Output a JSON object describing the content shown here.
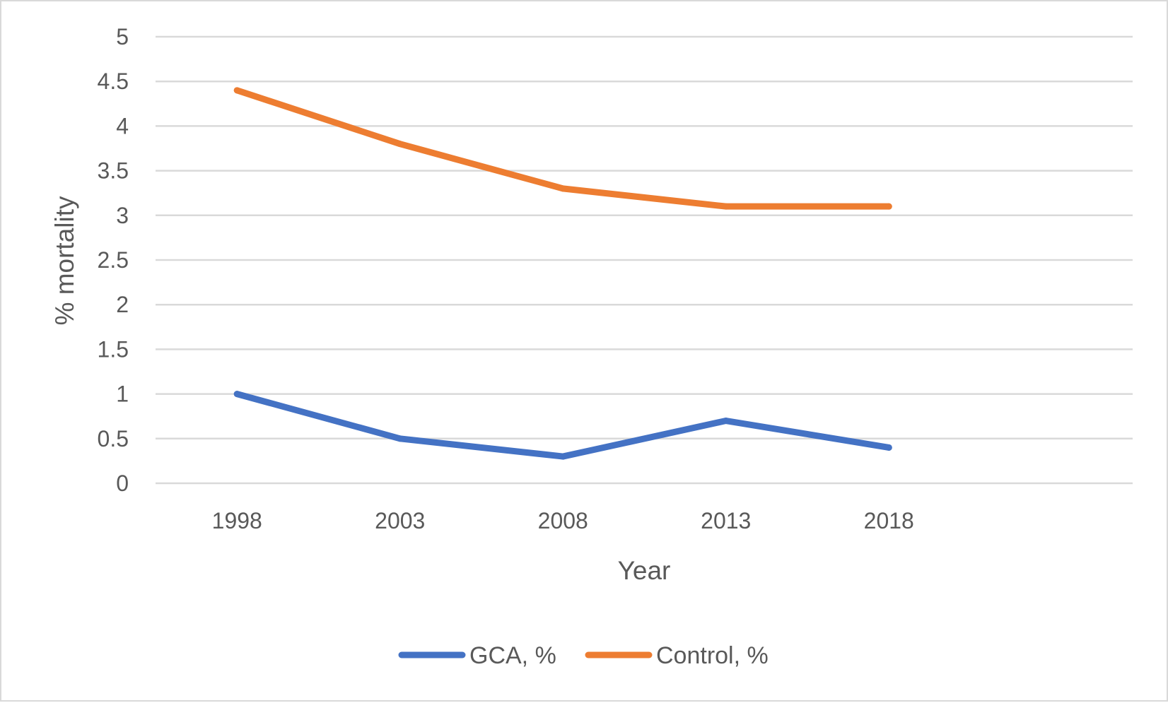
{
  "chart_data": {
    "type": "line",
    "title": "",
    "xlabel": "Year",
    "ylabel": "% mortality",
    "categories": [
      "1998",
      "2003",
      "2008",
      "2013",
      "2018"
    ],
    "ylim": [
      0,
      5
    ],
    "yticks": [
      "0",
      "0.5",
      "1",
      "1.5",
      "2",
      "2.5",
      "3",
      "3.5",
      "4",
      "4.5",
      "5"
    ],
    "grid": true,
    "legend_position": "bottom",
    "series": [
      {
        "name": "GCA, %",
        "color": "#4472c4",
        "values": [
          1.0,
          0.5,
          0.3,
          0.7,
          0.4
        ]
      },
      {
        "name": "Control, %",
        "color": "#ed7d31",
        "values": [
          4.4,
          3.8,
          3.3,
          3.1,
          3.1
        ]
      }
    ]
  }
}
